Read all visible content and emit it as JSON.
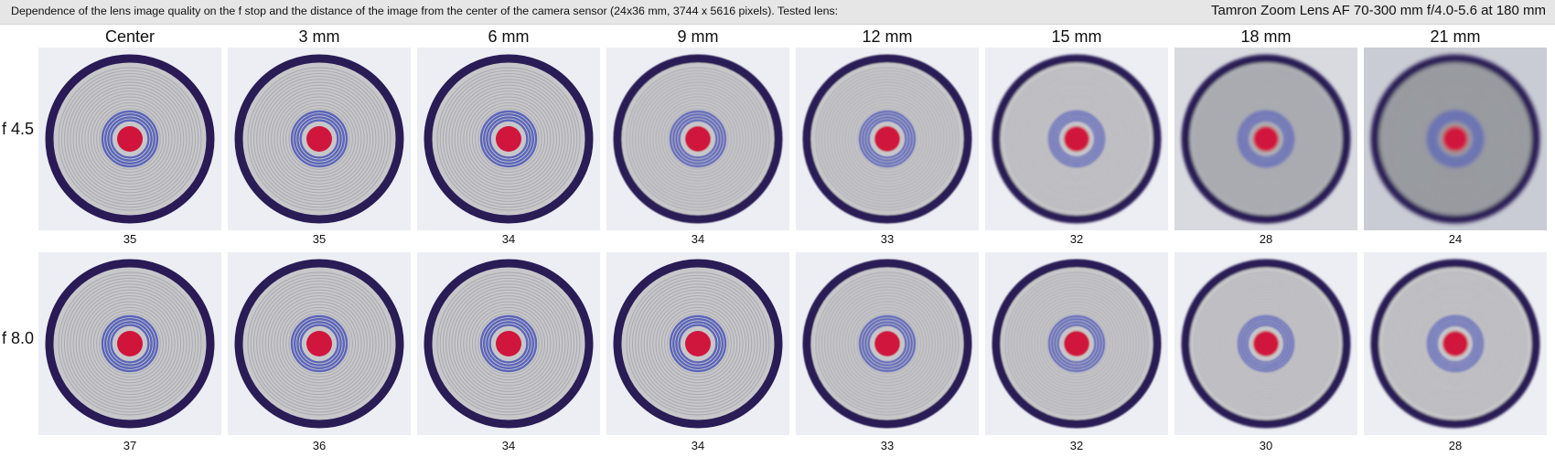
{
  "header": {
    "description": "Dependence of the lens image quality on the f stop and the distance of the image from the center of the camera sensor (24x36 mm, 3744 x 5616 pixels).  Tested lens:",
    "lens": "Tamron Zoom Lens AF 70-300 mm f/4.0-5.6 at 180 mm"
  },
  "columns": [
    {
      "label": "Center"
    },
    {
      "label": "3 mm"
    },
    {
      "label": "6 mm"
    },
    {
      "label": "9 mm"
    },
    {
      "label": "12 mm"
    },
    {
      "label": "15 mm"
    },
    {
      "label": "18 mm"
    },
    {
      "label": "21 mm"
    }
  ],
  "rows": [
    {
      "label": "f 4.5",
      "scores": [
        "35",
        "35",
        "34",
        "34",
        "33",
        "32",
        "28",
        "24"
      ]
    },
    {
      "label": "f 8.0",
      "scores": [
        "37",
        "36",
        "34",
        "34",
        "33",
        "32",
        "30",
        "28"
      ]
    }
  ],
  "colors": {
    "ring": "#2a1a55",
    "target_center": "#d0143c",
    "target_line": "#5560b8"
  }
}
